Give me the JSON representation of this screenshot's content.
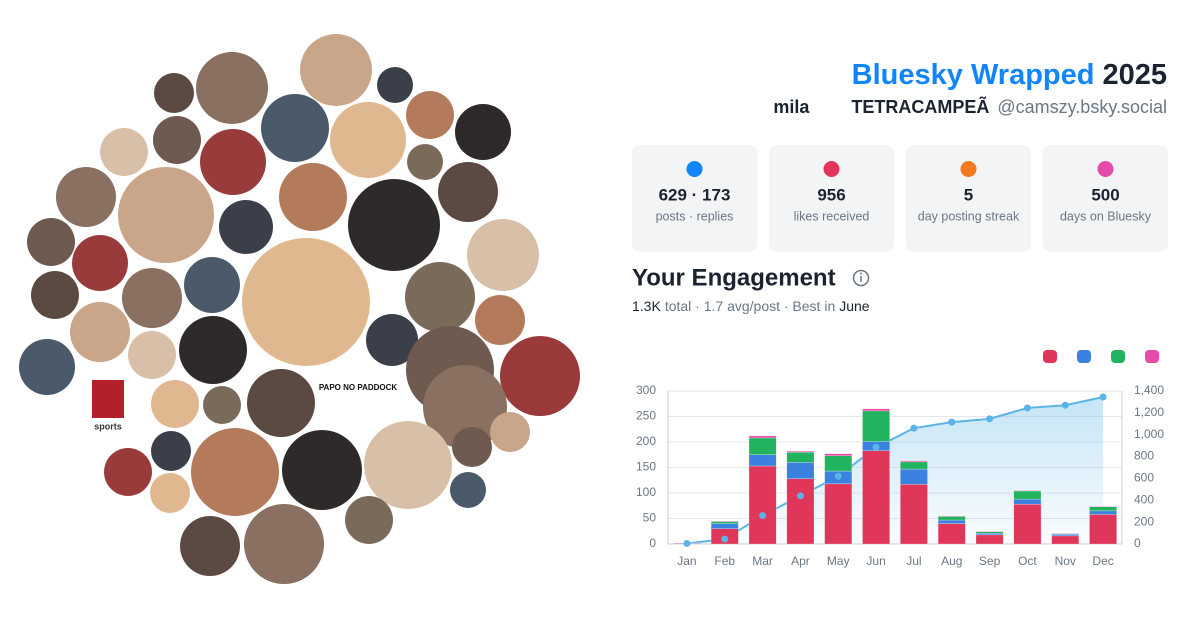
{
  "header": {
    "title": "Bluesky Wrapped",
    "year": "2025",
    "display_name": "mila",
    "display_name_2": "TETRACAMPEÃ",
    "handle": "@camszy.bsky.social"
  },
  "stats": [
    {
      "value": "629 · 173",
      "label": "posts · replies"
    },
    {
      "value": "956",
      "label": "likes received"
    },
    {
      "value": "5",
      "label": "day posting streak"
    },
    {
      "value": "500",
      "label": "days on Bluesky"
    }
  ],
  "avatars": {
    "logo_1": "PAPO NO PADDOCK",
    "logo_2": "sports"
  },
  "chart_data": {
    "type": "bar",
    "title": "Your Engagement",
    "subtitle": [
      "1.3K",
      "total · 1.7 avg/post · Best in",
      "June"
    ],
    "categories": [
      "Jan",
      "Feb",
      "Mar",
      "Apr",
      "May",
      "Jun",
      "Jul",
      "Aug",
      "Sep",
      "Oct",
      "Nov",
      "Dec"
    ],
    "series": [
      {
        "color": "#e0365a",
        "values": [
          1,
          30,
          153,
          128,
          118,
          183,
          117,
          40,
          18,
          78,
          16,
          58
        ]
      },
      {
        "color": "#3b82e0",
        "values": [
          1,
          10,
          22,
          32,
          25,
          18,
          30,
          7,
          3,
          10,
          3,
          7
        ]
      },
      {
        "color": "#22b35e",
        "values": [
          0,
          4,
          33,
          20,
          30,
          60,
          14,
          7,
          3,
          16,
          1,
          8
        ]
      },
      {
        "color": "#e64aa8",
        "values": [
          0,
          1,
          4,
          2,
          4,
          4,
          2,
          1,
          1,
          1,
          1,
          1
        ]
      },
      {
        "color": "#5ab4e8",
        "axis": "y2",
        "values": [
          5,
          45,
          260,
          440,
          620,
          885,
          1060,
          1115,
          1145,
          1245,
          1270,
          1345
        ]
      }
    ],
    "ylim": [
      0,
      300
    ],
    "yticks": [
      0,
      50,
      100,
      150,
      200,
      250,
      300
    ],
    "y2lim": [
      0,
      1400
    ],
    "y2ticks": [
      0,
      200,
      400,
      600,
      800,
      {
        "value": 1000,
        "label": "1,000"
      },
      {
        "value": 1200,
        "label": "1,200"
      },
      {
        "value": 1400,
        "label": "1,400"
      }
    ],
    "grid": true
  }
}
